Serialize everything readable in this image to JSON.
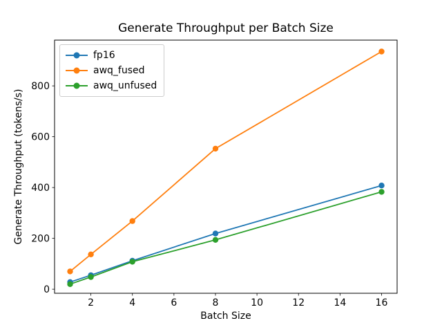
{
  "title": "Generate Throughput per Batch Size",
  "chart_data": {
    "type": "line",
    "title": "Generate Throughput per Batch Size",
    "xlabel": "Batch Size",
    "ylabel": "Generate Throughput (tokens/s)",
    "x": [
      1,
      2,
      4,
      8,
      16
    ],
    "series": [
      {
        "name": "fp16",
        "color": "#1f77b4",
        "values": [
          28,
          55,
          112,
          219,
          408
        ]
      },
      {
        "name": "awq_fused",
        "color": "#ff7f0e",
        "values": [
          70,
          137,
          268,
          553,
          935
        ]
      },
      {
        "name": "awq_unfused",
        "color": "#2ca02c",
        "values": [
          20,
          48,
          108,
          194,
          383
        ]
      }
    ],
    "x_ticks": [
      2,
      4,
      6,
      8,
      10,
      12,
      14,
      16
    ],
    "y_ticks": [
      0,
      200,
      400,
      600,
      800
    ],
    "xlim": [
      0.25,
      16.75
    ],
    "ylim": [
      -16,
      980
    ],
    "grid": false,
    "legend_position": "upper left",
    "marker": "o"
  }
}
